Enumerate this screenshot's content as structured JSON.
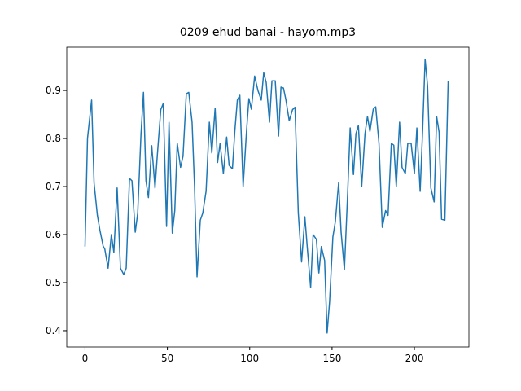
{
  "chart_data": {
    "type": "line",
    "title": "0209 ehud banai - hayom.mp3",
    "x": [
      0,
      1.5,
      4,
      5.5,
      7.5,
      9,
      11,
      12,
      14,
      16,
      17.5,
      19.5,
      21.5,
      23.5,
      25,
      27,
      28.5,
      30.5,
      32,
      34,
      35.5,
      37,
      38.5,
      40.5,
      42.5,
      44,
      46,
      47.5,
      49.5,
      51,
      53,
      54.5,
      56,
      58,
      59.5,
      61.5,
      63,
      65,
      66.5,
      68,
      70,
      71.5,
      73.5,
      75.5,
      77,
      79,
      80.5,
      82,
      84,
      86,
      87.5,
      89.5,
      91,
      92.5,
      94,
      96,
      98,
      99.5,
      101,
      103,
      105,
      107,
      108.5,
      110,
      112,
      113.5,
      115.5,
      117.5,
      119,
      120.5,
      122,
      124,
      126,
      127.5,
      129.5,
      131.5,
      133.5,
      135,
      137,
      138.5,
      140.5,
      142,
      143.5,
      145.5,
      147,
      148.5,
      150.5,
      152,
      154,
      155.5,
      157.5,
      159.5,
      161,
      163,
      164.5,
      166,
      168,
      170,
      171.5,
      173,
      175,
      176.5,
      178.5,
      180.5,
      182.5,
      184,
      186,
      187.5,
      189,
      191,
      192.5,
      194.5,
      196,
      198,
      200,
      201.5,
      203.5,
      205,
      206.5,
      208,
      210,
      212,
      213.5,
      215,
      216.5,
      218.5,
      220.5
    ],
    "series": [
      {
        "color": "#1f77b4",
        "values": [
          0.575,
          0.8,
          0.88,
          0.707,
          0.64,
          0.61,
          0.576,
          0.57,
          0.53,
          0.6,
          0.563,
          0.697,
          0.53,
          0.517,
          0.53,
          0.717,
          0.712,
          0.605,
          0.645,
          0.81,
          0.896,
          0.712,
          0.677,
          0.785,
          0.697,
          0.77,
          0.86,
          0.873,
          0.617,
          0.834,
          0.603,
          0.65,
          0.79,
          0.74,
          0.763,
          0.893,
          0.896,
          0.834,
          0.7,
          0.512,
          0.63,
          0.645,
          0.69,
          0.834,
          0.77,
          0.863,
          0.75,
          0.79,
          0.727,
          0.803,
          0.744,
          0.737,
          0.817,
          0.88,
          0.89,
          0.7,
          0.812,
          0.883,
          0.861,
          0.93,
          0.9,
          0.88,
          0.937,
          0.917,
          0.834,
          0.92,
          0.92,
          0.805,
          0.907,
          0.905,
          0.88,
          0.837,
          0.86,
          0.865,
          0.645,
          0.543,
          0.637,
          0.571,
          0.49,
          0.6,
          0.59,
          0.52,
          0.575,
          0.546,
          0.395,
          0.46,
          0.595,
          0.627,
          0.708,
          0.605,
          0.527,
          0.688,
          0.822,
          0.725,
          0.81,
          0.827,
          0.7,
          0.81,
          0.846,
          0.815,
          0.861,
          0.866,
          0.79,
          0.615,
          0.65,
          0.64,
          0.79,
          0.786,
          0.7,
          0.834,
          0.74,
          0.727,
          0.79,
          0.79,
          0.727,
          0.822,
          0.69,
          0.817,
          0.965,
          0.91,
          0.697,
          0.668,
          0.846,
          0.813,
          0.632,
          0.63,
          0.92
        ]
      }
    ],
    "xlim": [
      -11.1,
      233.1
    ],
    "ylim": [
      0.366,
      0.99
    ],
    "xticks": [
      0,
      50,
      100,
      150,
      200
    ],
    "yticks": [
      0.4,
      0.5,
      0.6,
      0.7,
      0.8,
      0.9
    ]
  }
}
